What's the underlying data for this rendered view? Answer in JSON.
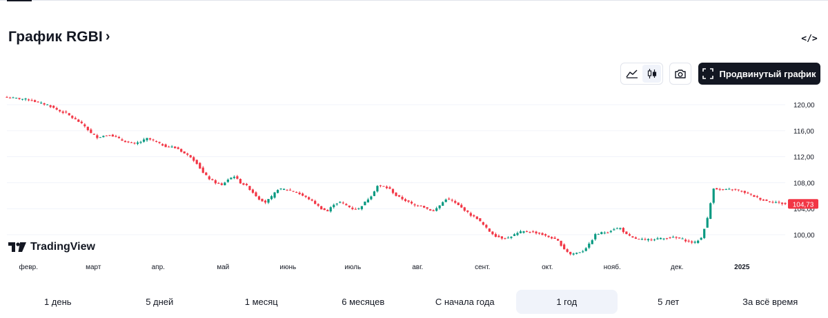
{
  "header": {
    "title": "График RGBI",
    "title_chevron": "›",
    "embed_glyph": "</>"
  },
  "toolbar": {
    "style_options": [
      "area-chart-icon",
      "candles-icon"
    ],
    "active_style": "candles",
    "snapshot_icon": "camera-icon",
    "advanced_chart_label": "Продвинутый график",
    "advanced_chart_icon": "fullscreen-icon"
  },
  "branding": {
    "logo_text": "TradingView"
  },
  "colors": {
    "up": "#089981",
    "down": "#f23645",
    "grid": "#f0f3fa",
    "axis_text": "#131722",
    "last_price_bg": "#f23645"
  },
  "range_tabs": [
    "1 день",
    "5 дней",
    "1 месяц",
    "6 месяцев",
    "С начала года",
    "1 год",
    "5 лет",
    "За всё время"
  ],
  "active_range": "1 год",
  "chart_data": {
    "type": "candlestick",
    "x_ticks": [
      "февр.",
      "март",
      "апр.",
      "май",
      "июнь",
      "июль",
      "авг.",
      "сент.",
      "окт.",
      "нояб.",
      "дек.",
      "2025"
    ],
    "y_ticks": [
      "100,00",
      "104,00",
      "108,00",
      "112,00",
      "116,00",
      "120,00"
    ],
    "y_tick_values": [
      100,
      104,
      108,
      112,
      116,
      120
    ],
    "ylim": [
      96.5,
      121.5
    ],
    "last_price": 104.73,
    "last_price_label": "104,73",
    "close_path": [
      [
        0,
        121.1
      ],
      [
        3,
        121.0
      ],
      [
        5,
        120.9
      ],
      [
        8,
        120.7
      ],
      [
        10,
        120.3
      ],
      [
        13,
        120.0
      ],
      [
        15,
        119.5
      ],
      [
        17,
        119.0
      ],
      [
        19,
        118.7
      ],
      [
        21,
        118.0
      ],
      [
        23,
        117.4
      ],
      [
        25,
        116.7
      ],
      [
        27,
        115.6
      ],
      [
        29,
        115.0
      ],
      [
        31,
        115.2
      ],
      [
        33,
        115.4
      ],
      [
        35,
        115.0
      ],
      [
        37,
        114.5
      ],
      [
        39,
        114.2
      ],
      [
        41,
        114.0
      ],
      [
        43,
        114.3
      ],
      [
        45,
        114.8
      ],
      [
        47,
        114.5
      ],
      [
        49,
        114.0
      ],
      [
        51,
        113.6
      ],
      [
        53,
        113.5
      ],
      [
        55,
        113.2
      ],
      [
        57,
        112.5
      ],
      [
        59,
        112.0
      ],
      [
        61,
        111.0
      ],
      [
        63,
        109.5
      ],
      [
        65,
        108.6
      ],
      [
        67,
        108.0
      ],
      [
        69,
        107.6
      ],
      [
        71,
        108.5
      ],
      [
        73,
        109.0
      ],
      [
        75,
        108.0
      ],
      [
        77,
        107.5
      ],
      [
        79,
        106.5
      ],
      [
        81,
        105.5
      ],
      [
        83,
        105.0
      ],
      [
        85,
        105.8
      ],
      [
        87,
        107.0
      ],
      [
        89,
        107.0
      ],
      [
        91,
        106.8
      ],
      [
        93,
        106.5
      ],
      [
        95,
        106.0
      ],
      [
        97,
        105.5
      ],
      [
        99,
        104.8
      ],
      [
        101,
        104.0
      ],
      [
        103,
        103.6
      ],
      [
        105,
        104.7
      ],
      [
        107,
        105.0
      ],
      [
        109,
        104.5
      ],
      [
        111,
        104.0
      ],
      [
        113,
        104.0
      ],
      [
        115,
        105.0
      ],
      [
        117,
        106.0
      ],
      [
        119,
        107.5
      ],
      [
        121,
        107.4
      ],
      [
        123,
        107.0
      ],
      [
        125,
        106.0
      ],
      [
        127,
        105.5
      ],
      [
        129,
        105.0
      ],
      [
        131,
        104.5
      ],
      [
        133,
        104.5
      ],
      [
        135,
        104.0
      ],
      [
        137,
        103.6
      ],
      [
        139,
        104.5
      ],
      [
        141,
        105.5
      ],
      [
        143,
        105.2
      ],
      [
        145,
        104.5
      ],
      [
        147,
        103.8
      ],
      [
        149,
        103.0
      ],
      [
        151,
        102.5
      ],
      [
        153,
        101.5
      ],
      [
        155,
        100.5
      ],
      [
        157,
        99.8
      ],
      [
        159,
        99.5
      ],
      [
        161,
        99.5
      ],
      [
        163,
        100.0
      ],
      [
        165,
        100.4
      ],
      [
        167,
        100.5
      ],
      [
        169,
        100.4
      ],
      [
        171,
        100.2
      ],
      [
        173,
        99.8
      ],
      [
        175,
        99.5
      ],
      [
        177,
        99.0
      ],
      [
        179,
        97.8
      ],
      [
        181,
        97.0
      ],
      [
        183,
        97.2
      ],
      [
        185,
        97.5
      ],
      [
        187,
        98.5
      ],
      [
        189,
        100.0
      ],
      [
        191,
        100.3
      ],
      [
        193,
        100.4
      ],
      [
        195,
        100.9
      ],
      [
        197,
        101.0
      ],
      [
        199,
        100.0
      ],
      [
        201,
        99.5
      ],
      [
        203,
        99.3
      ],
      [
        205,
        99.2
      ],
      [
        207,
        99.3
      ],
      [
        209,
        99.4
      ],
      [
        211,
        99.4
      ],
      [
        213,
        99.6
      ],
      [
        215,
        99.5
      ],
      [
        217,
        99.3
      ],
      [
        219,
        98.9
      ],
      [
        221,
        98.8
      ],
      [
        223,
        99.5
      ],
      [
        225,
        102.5
      ],
      [
        227,
        107.2
      ],
      [
        229,
        106.9
      ],
      [
        231,
        106.9
      ],
      [
        233,
        107.0
      ],
      [
        235,
        106.8
      ],
      [
        237,
        106.5
      ],
      [
        239,
        106.1
      ],
      [
        241,
        105.7
      ],
      [
        243,
        105.3
      ],
      [
        245,
        105.1
      ],
      [
        247,
        105.0
      ],
      [
        249,
        104.8
      ],
      [
        250,
        104.73
      ]
    ]
  }
}
